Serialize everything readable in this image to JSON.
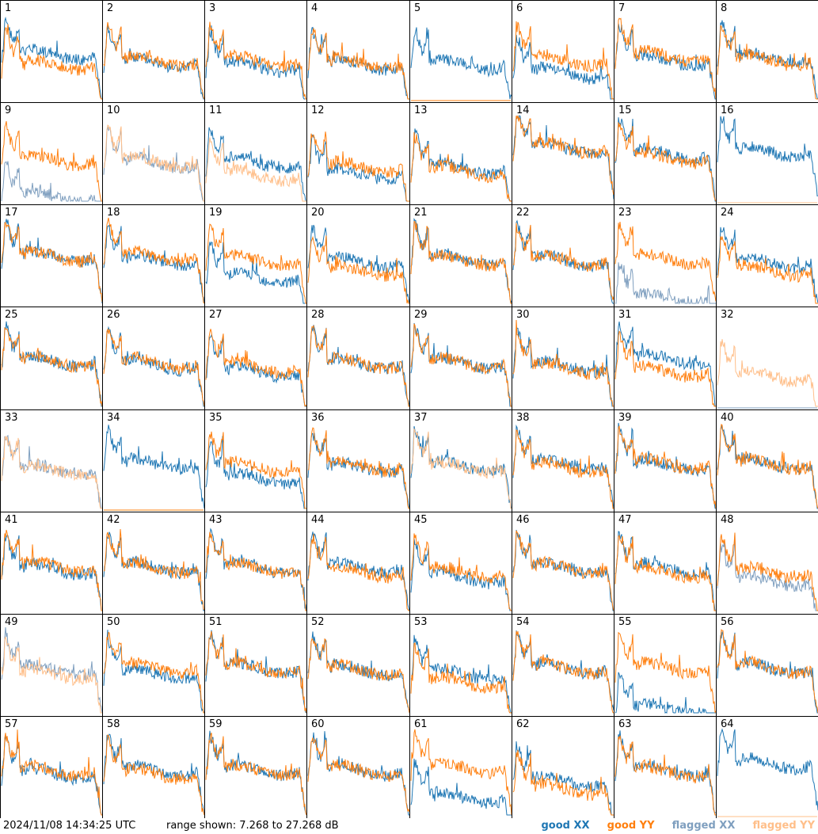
{
  "footer": {
    "timestamp": "2024/11/08 14:34:25 UTC",
    "range": "range shown: 7.268 to 27.268 dB"
  },
  "legend": [
    {
      "label": "good XX",
      "color": "#1f77b4"
    },
    {
      "label": "good YY",
      "color": "#ff7f0e"
    },
    {
      "label": "flagged XX",
      "color": "#7f9fbf"
    },
    {
      "label": "flagged YY",
      "color": "#ffbf8a"
    }
  ],
  "chart_data": {
    "type": "line",
    "title": "",
    "ylim": [
      7.268,
      27.268
    ],
    "unit": "dB",
    "panels": [
      {
        "label": "1",
        "xx": "good",
        "yy": "good",
        "xx_level": 0.52,
        "yy_level": 0.4,
        "yy_dip": 0.8
      },
      {
        "label": "2",
        "xx": "good",
        "yy": "good",
        "xx_level": 0.42,
        "yy_level": 0.45
      },
      {
        "label": "3",
        "xx": "good",
        "yy": "good",
        "xx_level": 0.38,
        "yy_level": 0.44
      },
      {
        "label": "4",
        "xx": "good",
        "yy": "good",
        "xx_level": 0.4,
        "yy_level": 0.42
      },
      {
        "label": "5",
        "xx": "good",
        "yy": "good",
        "xx_level": 0.4,
        "yy_level": 0.0,
        "xx_dip": 0.7
      },
      {
        "label": "6",
        "xx": "good",
        "yy": "good",
        "xx_level": 0.3,
        "yy_level": 0.45
      },
      {
        "label": "7",
        "xx": "good",
        "yy": "good",
        "xx_level": 0.45,
        "yy_level": 0.5
      },
      {
        "label": "8",
        "xx": "good",
        "yy": "good",
        "xx_level": 0.48,
        "yy_level": 0.45
      },
      {
        "label": "9",
        "xx": "flagged",
        "yy": "good",
        "xx_level": 0.05,
        "yy_level": 0.48
      },
      {
        "label": "10",
        "xx": "flagged",
        "yy": "flagged",
        "xx_level": 0.45,
        "yy_level": 0.46
      },
      {
        "label": "11",
        "xx": "good",
        "yy": "flagged",
        "xx_level": 0.45,
        "yy_level": 0.3
      },
      {
        "label": "12",
        "xx": "good",
        "yy": "good",
        "xx_level": 0.32,
        "yy_level": 0.4
      },
      {
        "label": "13",
        "xx": "good",
        "yy": "good",
        "xx_level": 0.38,
        "yy_level": 0.35
      },
      {
        "label": "14",
        "xx": "good",
        "yy": "good",
        "xx_level": 0.62,
        "yy_level": 0.62
      },
      {
        "label": "15",
        "xx": "good",
        "yy": "good",
        "xx_level": 0.55,
        "yy_level": 0.5
      },
      {
        "label": "16",
        "xx": "good",
        "yy": "flagged",
        "xx_level": 0.58,
        "yy_level": 0.0
      },
      {
        "label": "17",
        "xx": "good",
        "yy": "good",
        "xx_level": 0.55,
        "yy_level": 0.55
      },
      {
        "label": "18",
        "xx": "good",
        "yy": "good",
        "xx_level": 0.5,
        "yy_level": 0.55
      },
      {
        "label": "19",
        "xx": "good",
        "yy": "good",
        "xx_level": 0.3,
        "yy_level": 0.5
      },
      {
        "label": "20",
        "xx": "good",
        "yy": "good",
        "xx_level": 0.48,
        "yy_level": 0.38
      },
      {
        "label": "21",
        "xx": "good",
        "yy": "good",
        "xx_level": 0.52,
        "yy_level": 0.5
      },
      {
        "label": "22",
        "xx": "good",
        "yy": "good",
        "xx_level": 0.5,
        "yy_level": 0.5
      },
      {
        "label": "23",
        "xx": "flagged",
        "yy": "good",
        "xx_level": 0.05,
        "yy_level": 0.52
      },
      {
        "label": "24",
        "xx": "good",
        "yy": "good",
        "xx_level": 0.48,
        "yy_level": 0.38
      },
      {
        "label": "25",
        "xx": "good",
        "yy": "good",
        "xx_level": 0.52,
        "yy_level": 0.52
      },
      {
        "label": "26",
        "xx": "good",
        "yy": "good",
        "xx_level": 0.48,
        "yy_level": 0.5
      },
      {
        "label": "27",
        "xx": "good",
        "yy": "good",
        "xx_level": 0.4,
        "yy_level": 0.45
      },
      {
        "label": "28",
        "xx": "good",
        "yy": "good",
        "xx_level": 0.5,
        "yy_level": 0.5
      },
      {
        "label": "29",
        "xx": "good",
        "yy": "good",
        "xx_level": 0.5,
        "yy_level": 0.5
      },
      {
        "label": "30",
        "xx": "good",
        "yy": "good",
        "xx_level": 0.46,
        "yy_level": 0.44
      },
      {
        "label": "31",
        "xx": "good",
        "yy": "good",
        "xx_level": 0.55,
        "yy_level": 0.4
      },
      {
        "label": "32",
        "xx": "flagged",
        "yy": "flagged",
        "xx_level": 0.0,
        "yy_level": 0.35
      },
      {
        "label": "33",
        "xx": "flagged",
        "yy": "flagged",
        "xx_level": 0.45,
        "yy_level": 0.45
      },
      {
        "label": "34",
        "xx": "good",
        "yy": "good",
        "xx_level": 0.52,
        "yy_level": 0.0
      },
      {
        "label": "35",
        "xx": "good",
        "yy": "good",
        "xx_level": 0.35,
        "yy_level": 0.48
      },
      {
        "label": "36",
        "xx": "good",
        "yy": "good",
        "xx_level": 0.48,
        "yy_level": 0.5
      },
      {
        "label": "37",
        "xx": "good",
        "yy": "flagged",
        "xx_level": 0.5,
        "yy_level": 0.48
      },
      {
        "label": "38",
        "xx": "good",
        "yy": "good",
        "xx_level": 0.52,
        "yy_level": 0.48
      },
      {
        "label": "39",
        "xx": "good",
        "yy": "good",
        "xx_level": 0.5,
        "yy_level": 0.52
      },
      {
        "label": "40",
        "xx": "good",
        "yy": "good",
        "xx_level": 0.52,
        "yy_level": 0.52
      },
      {
        "label": "41",
        "xx": "good",
        "yy": "good",
        "xx_level": 0.48,
        "yy_level": 0.52
      },
      {
        "label": "42",
        "xx": "good",
        "yy": "good",
        "xx_level": 0.5,
        "yy_level": 0.5
      },
      {
        "label": "43",
        "xx": "good",
        "yy": "good",
        "xx_level": 0.5,
        "yy_level": 0.5
      },
      {
        "label": "44",
        "xx": "good",
        "yy": "good",
        "xx_level": 0.5,
        "yy_level": 0.45
      },
      {
        "label": "45",
        "xx": "good",
        "yy": "good",
        "xx_level": 0.38,
        "yy_level": 0.45
      },
      {
        "label": "46",
        "xx": "good",
        "yy": "good",
        "xx_level": 0.5,
        "yy_level": 0.5
      },
      {
        "label": "47",
        "xx": "good",
        "yy": "good",
        "xx_level": 0.5,
        "yy_level": 0.45
      },
      {
        "label": "48",
        "xx": "flagged",
        "yy": "good",
        "xx_level": 0.35,
        "yy_level": 0.45
      },
      {
        "label": "49",
        "xx": "flagged",
        "yy": "flagged",
        "xx_level": 0.5,
        "yy_level": 0.45
      },
      {
        "label": "50",
        "xx": "good",
        "yy": "good",
        "xx_level": 0.45,
        "yy_level": 0.52
      },
      {
        "label": "51",
        "xx": "good",
        "yy": "good",
        "xx_level": 0.52,
        "yy_level": 0.52
      },
      {
        "label": "52",
        "xx": "good",
        "yy": "good",
        "xx_level": 0.5,
        "yy_level": 0.5
      },
      {
        "label": "53",
        "xx": "good",
        "yy": "good",
        "xx_level": 0.45,
        "yy_level": 0.35
      },
      {
        "label": "54",
        "xx": "good",
        "yy": "good",
        "xx_level": 0.52,
        "yy_level": 0.52
      },
      {
        "label": "55",
        "xx": "good",
        "yy": "good",
        "xx_level": 0.05,
        "yy_level": 0.52
      },
      {
        "label": "56",
        "xx": "good",
        "yy": "good",
        "xx_level": 0.52,
        "yy_level": 0.52
      },
      {
        "label": "57",
        "xx": "good",
        "yy": "good",
        "xx_level": 0.48,
        "yy_level": 0.52
      },
      {
        "label": "58",
        "xx": "good",
        "yy": "good",
        "xx_level": 0.52,
        "yy_level": 0.48
      },
      {
        "label": "59",
        "xx": "good",
        "yy": "good",
        "xx_level": 0.52,
        "yy_level": 0.52
      },
      {
        "label": "60",
        "xx": "good",
        "yy": "good",
        "xx_level": 0.52,
        "yy_level": 0.52
      },
      {
        "label": "61",
        "xx": "good",
        "yy": "good",
        "xx_level": 0.2,
        "yy_level": 0.55
      },
      {
        "label": "62",
        "xx": "good",
        "yy": "good",
        "xx_level": 0.4,
        "yy_level": 0.3
      },
      {
        "label": "63",
        "xx": "good",
        "yy": "good",
        "xx_level": 0.52,
        "yy_level": 0.5
      },
      {
        "label": "64",
        "xx": "good",
        "yy": "flagged",
        "xx_level": 0.6,
        "yy_level": 0.0
      }
    ]
  }
}
